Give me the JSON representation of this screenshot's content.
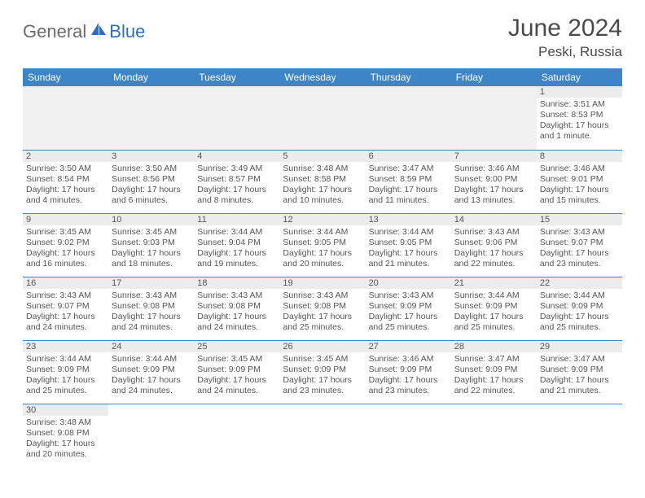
{
  "logo": {
    "text1": "General",
    "text2": "Blue"
  },
  "title": "June 2024",
  "location": "Peski, Russia",
  "day_headers": [
    "Sunday",
    "Monday",
    "Tuesday",
    "Wednesday",
    "Thursday",
    "Friday",
    "Saturday"
  ],
  "colors": {
    "header_bg": "#3d85c6",
    "header_text": "#ffffff",
    "daynum_bg": "#ececec",
    "border": "#3d85c6",
    "text": "#555555",
    "title": "#4a4a4a",
    "logo_grey": "#6b6b6b",
    "logo_blue": "#2d6fb8"
  },
  "weeks": [
    [
      null,
      null,
      null,
      null,
      null,
      null,
      {
        "n": "1",
        "sr": "Sunrise: 3:51 AM",
        "ss": "Sunset: 8:53 PM",
        "dl": "Daylight: 17 hours and 1 minute."
      }
    ],
    [
      {
        "n": "2",
        "sr": "Sunrise: 3:50 AM",
        "ss": "Sunset: 8:54 PM",
        "dl": "Daylight: 17 hours and 4 minutes."
      },
      {
        "n": "3",
        "sr": "Sunrise: 3:50 AM",
        "ss": "Sunset: 8:56 PM",
        "dl": "Daylight: 17 hours and 6 minutes."
      },
      {
        "n": "4",
        "sr": "Sunrise: 3:49 AM",
        "ss": "Sunset: 8:57 PM",
        "dl": "Daylight: 17 hours and 8 minutes."
      },
      {
        "n": "5",
        "sr": "Sunrise: 3:48 AM",
        "ss": "Sunset: 8:58 PM",
        "dl": "Daylight: 17 hours and 10 minutes."
      },
      {
        "n": "6",
        "sr": "Sunrise: 3:47 AM",
        "ss": "Sunset: 8:59 PM",
        "dl": "Daylight: 17 hours and 11 minutes."
      },
      {
        "n": "7",
        "sr": "Sunrise: 3:46 AM",
        "ss": "Sunset: 9:00 PM",
        "dl": "Daylight: 17 hours and 13 minutes."
      },
      {
        "n": "8",
        "sr": "Sunrise: 3:46 AM",
        "ss": "Sunset: 9:01 PM",
        "dl": "Daylight: 17 hours and 15 minutes."
      }
    ],
    [
      {
        "n": "9",
        "sr": "Sunrise: 3:45 AM",
        "ss": "Sunset: 9:02 PM",
        "dl": "Daylight: 17 hours and 16 minutes."
      },
      {
        "n": "10",
        "sr": "Sunrise: 3:45 AM",
        "ss": "Sunset: 9:03 PM",
        "dl": "Daylight: 17 hours and 18 minutes."
      },
      {
        "n": "11",
        "sr": "Sunrise: 3:44 AM",
        "ss": "Sunset: 9:04 PM",
        "dl": "Daylight: 17 hours and 19 minutes."
      },
      {
        "n": "12",
        "sr": "Sunrise: 3:44 AM",
        "ss": "Sunset: 9:05 PM",
        "dl": "Daylight: 17 hours and 20 minutes."
      },
      {
        "n": "13",
        "sr": "Sunrise: 3:44 AM",
        "ss": "Sunset: 9:05 PM",
        "dl": "Daylight: 17 hours and 21 minutes."
      },
      {
        "n": "14",
        "sr": "Sunrise: 3:43 AM",
        "ss": "Sunset: 9:06 PM",
        "dl": "Daylight: 17 hours and 22 minutes."
      },
      {
        "n": "15",
        "sr": "Sunrise: 3:43 AM",
        "ss": "Sunset: 9:07 PM",
        "dl": "Daylight: 17 hours and 23 minutes."
      }
    ],
    [
      {
        "n": "16",
        "sr": "Sunrise: 3:43 AM",
        "ss": "Sunset: 9:07 PM",
        "dl": "Daylight: 17 hours and 24 minutes."
      },
      {
        "n": "17",
        "sr": "Sunrise: 3:43 AM",
        "ss": "Sunset: 9:08 PM",
        "dl": "Daylight: 17 hours and 24 minutes."
      },
      {
        "n": "18",
        "sr": "Sunrise: 3:43 AM",
        "ss": "Sunset: 9:08 PM",
        "dl": "Daylight: 17 hours and 24 minutes."
      },
      {
        "n": "19",
        "sr": "Sunrise: 3:43 AM",
        "ss": "Sunset: 9:08 PM",
        "dl": "Daylight: 17 hours and 25 minutes."
      },
      {
        "n": "20",
        "sr": "Sunrise: 3:43 AM",
        "ss": "Sunset: 9:09 PM",
        "dl": "Daylight: 17 hours and 25 minutes."
      },
      {
        "n": "21",
        "sr": "Sunrise: 3:44 AM",
        "ss": "Sunset: 9:09 PM",
        "dl": "Daylight: 17 hours and 25 minutes."
      },
      {
        "n": "22",
        "sr": "Sunrise: 3:44 AM",
        "ss": "Sunset: 9:09 PM",
        "dl": "Daylight: 17 hours and 25 minutes."
      }
    ],
    [
      {
        "n": "23",
        "sr": "Sunrise: 3:44 AM",
        "ss": "Sunset: 9:09 PM",
        "dl": "Daylight: 17 hours and 25 minutes."
      },
      {
        "n": "24",
        "sr": "Sunrise: 3:44 AM",
        "ss": "Sunset: 9:09 PM",
        "dl": "Daylight: 17 hours and 24 minutes."
      },
      {
        "n": "25",
        "sr": "Sunrise: 3:45 AM",
        "ss": "Sunset: 9:09 PM",
        "dl": "Daylight: 17 hours and 24 minutes."
      },
      {
        "n": "26",
        "sr": "Sunrise: 3:45 AM",
        "ss": "Sunset: 9:09 PM",
        "dl": "Daylight: 17 hours and 23 minutes."
      },
      {
        "n": "27",
        "sr": "Sunrise: 3:46 AM",
        "ss": "Sunset: 9:09 PM",
        "dl": "Daylight: 17 hours and 23 minutes."
      },
      {
        "n": "28",
        "sr": "Sunrise: 3:47 AM",
        "ss": "Sunset: 9:09 PM",
        "dl": "Daylight: 17 hours and 22 minutes."
      },
      {
        "n": "29",
        "sr": "Sunrise: 3:47 AM",
        "ss": "Sunset: 9:09 PM",
        "dl": "Daylight: 17 hours and 21 minutes."
      }
    ],
    [
      {
        "n": "30",
        "sr": "Sunrise: 3:48 AM",
        "ss": "Sunset: 9:08 PM",
        "dl": "Daylight: 17 hours and 20 minutes."
      },
      null,
      null,
      null,
      null,
      null,
      null
    ]
  ]
}
